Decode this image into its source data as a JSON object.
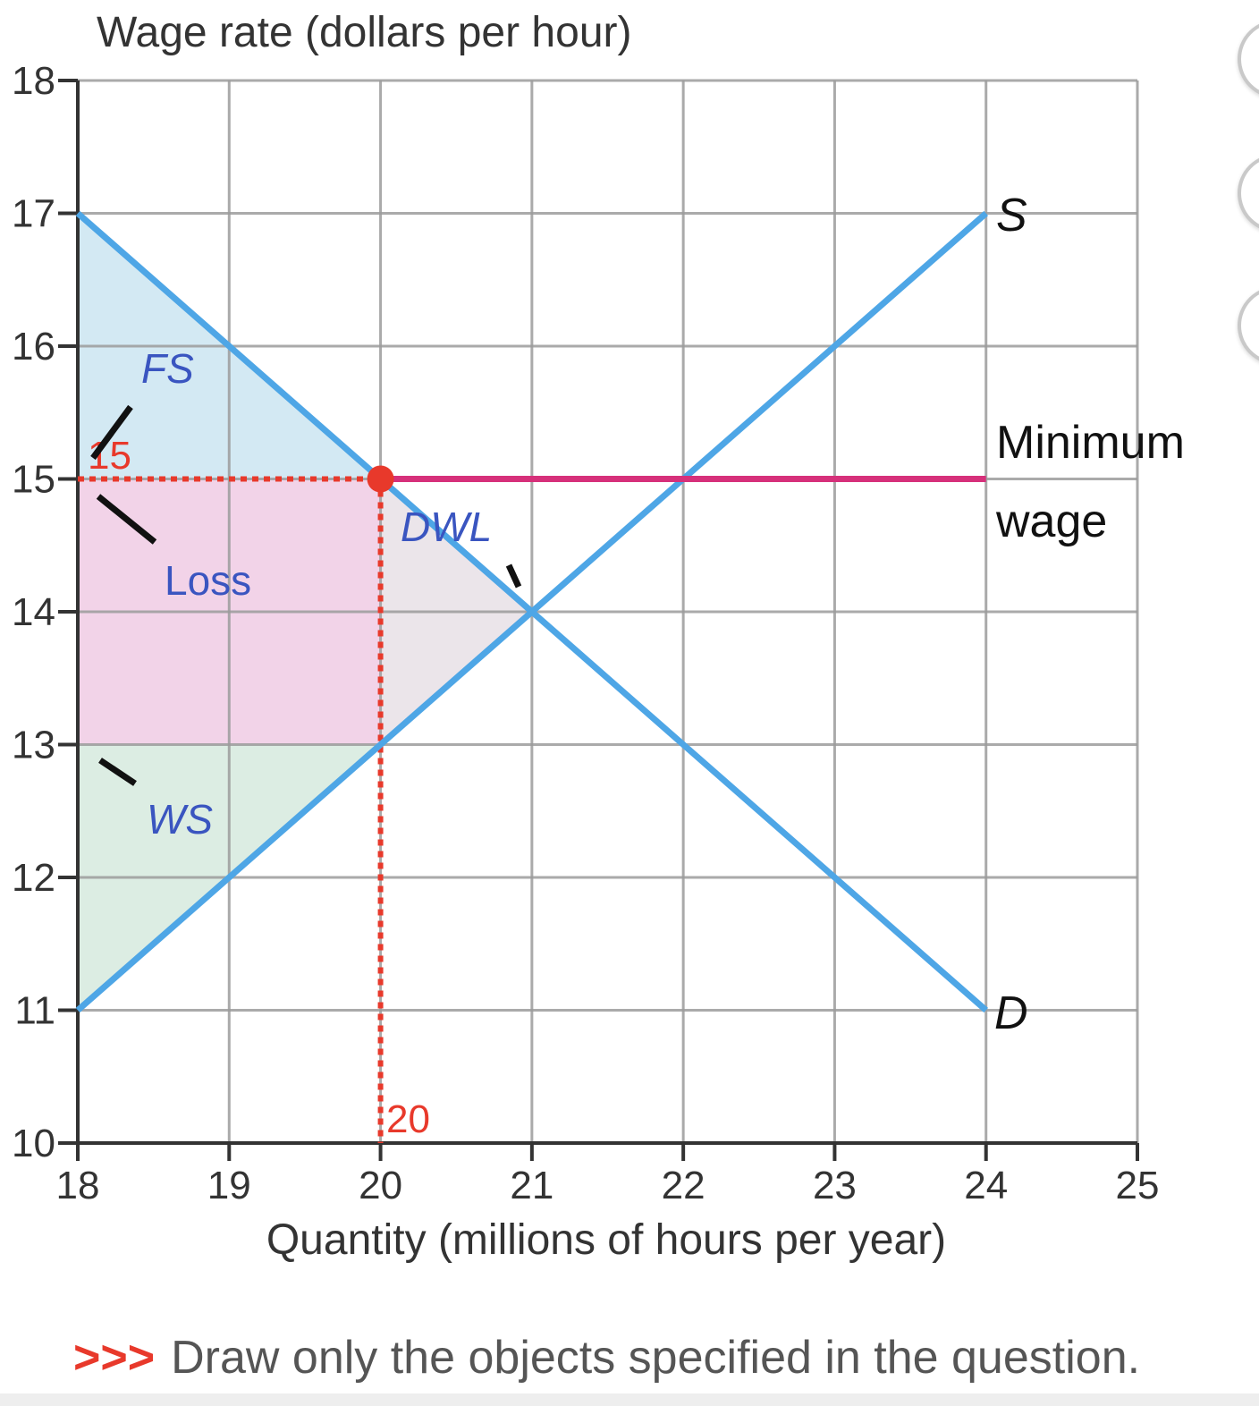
{
  "chart_data": {
    "type": "line",
    "ylabel": "Wage rate (dollars per hour)",
    "xlabel": "Quantity (millions of hours per year)",
    "xlim": [
      18,
      25
    ],
    "ylim": [
      10,
      18
    ],
    "x_ticks": [
      "18",
      "19",
      "20",
      "21",
      "22",
      "23",
      "24",
      "25"
    ],
    "y_ticks": [
      "10",
      "11",
      "12",
      "13",
      "14",
      "15",
      "16",
      "17",
      "18"
    ],
    "grid": true,
    "series": [
      {
        "name": "S",
        "type": "line",
        "color": "#4ea6e6",
        "points": [
          [
            18,
            11
          ],
          [
            24,
            17
          ]
        ]
      },
      {
        "name": "D",
        "type": "line",
        "color": "#4ea6e6",
        "points": [
          [
            18,
            17
          ],
          [
            24,
            11
          ]
        ]
      },
      {
        "name": "Minimum wage",
        "type": "hline",
        "color": "#d6307a",
        "y": 15,
        "x_range": [
          20,
          24
        ]
      }
    ],
    "areas": [
      {
        "label": "FS",
        "italic": true,
        "color": "#d3e9f3",
        "points": [
          [
            18,
            17
          ],
          [
            20,
            15
          ],
          [
            18,
            15
          ]
        ]
      },
      {
        "label": "Loss",
        "italic": false,
        "color": "#f2d3e8",
        "points": [
          [
            18,
            15
          ],
          [
            20,
            15
          ],
          [
            20,
            13
          ],
          [
            18,
            13
          ]
        ]
      },
      {
        "label": "DWL",
        "italic": true,
        "color": "#ebe5ea",
        "points": [
          [
            20,
            15
          ],
          [
            21,
            14
          ],
          [
            20,
            13
          ]
        ]
      },
      {
        "label": "WS",
        "italic": true,
        "color": "#dcede3",
        "points": [
          [
            18,
            13
          ],
          [
            20,
            13
          ],
          [
            18,
            11
          ]
        ]
      }
    ],
    "point": {
      "x": 20,
      "y": 15,
      "color": "#e8392b",
      "x_label": "20",
      "y_label": "15"
    },
    "labels": {
      "supply": "S",
      "demand": "D",
      "minimum_wage_line1": "Minimum",
      "minimum_wage_line2": "wage"
    }
  },
  "instruction": {
    "prefix": ">>>",
    "text": "Draw only the objects specified in the question."
  }
}
